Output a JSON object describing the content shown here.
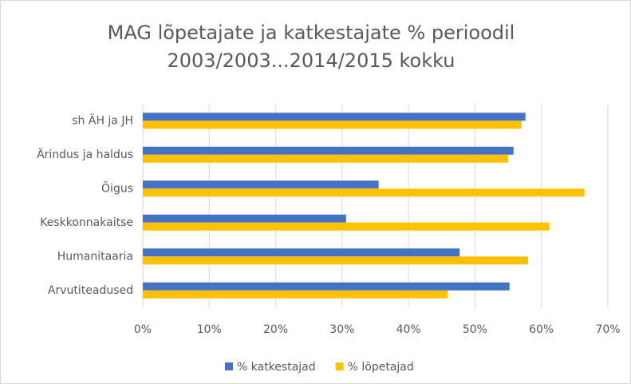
{
  "chart_data": {
    "type": "hbar",
    "title": [
      "MAG lõpetajate ja katkestajate % perioodil",
      "2003/2003...2014/2015 kokku"
    ],
    "categories": [
      "sh ÄH ja JH",
      "Ärindus ja haldus",
      "Õigus",
      "Keskkonnakaitse",
      "Humanitaaria",
      "Arvutiteadused"
    ],
    "series": [
      {
        "name": "% katkestajad",
        "color": "#4472c4",
        "values": [
          57.6,
          55.8,
          35.5,
          30.6,
          47.7,
          55.2
        ]
      },
      {
        "name": "% lõpetajad",
        "color": "#ffc000",
        "values": [
          57.0,
          55.0,
          66.5,
          61.2,
          58.0,
          45.9
        ]
      }
    ],
    "xlim": [
      0,
      70
    ],
    "xticks": [
      {
        "value": 0,
        "label": "0%"
      },
      {
        "value": 10,
        "label": "10%"
      },
      {
        "value": 20,
        "label": "20%"
      },
      {
        "value": 30,
        "label": "30%"
      },
      {
        "value": 40,
        "label": "40%"
      },
      {
        "value": 50,
        "label": "50%"
      },
      {
        "value": 60,
        "label": "60%"
      },
      {
        "value": 70,
        "label": "70%"
      }
    ],
    "grid": true,
    "legend": "bottom"
  }
}
